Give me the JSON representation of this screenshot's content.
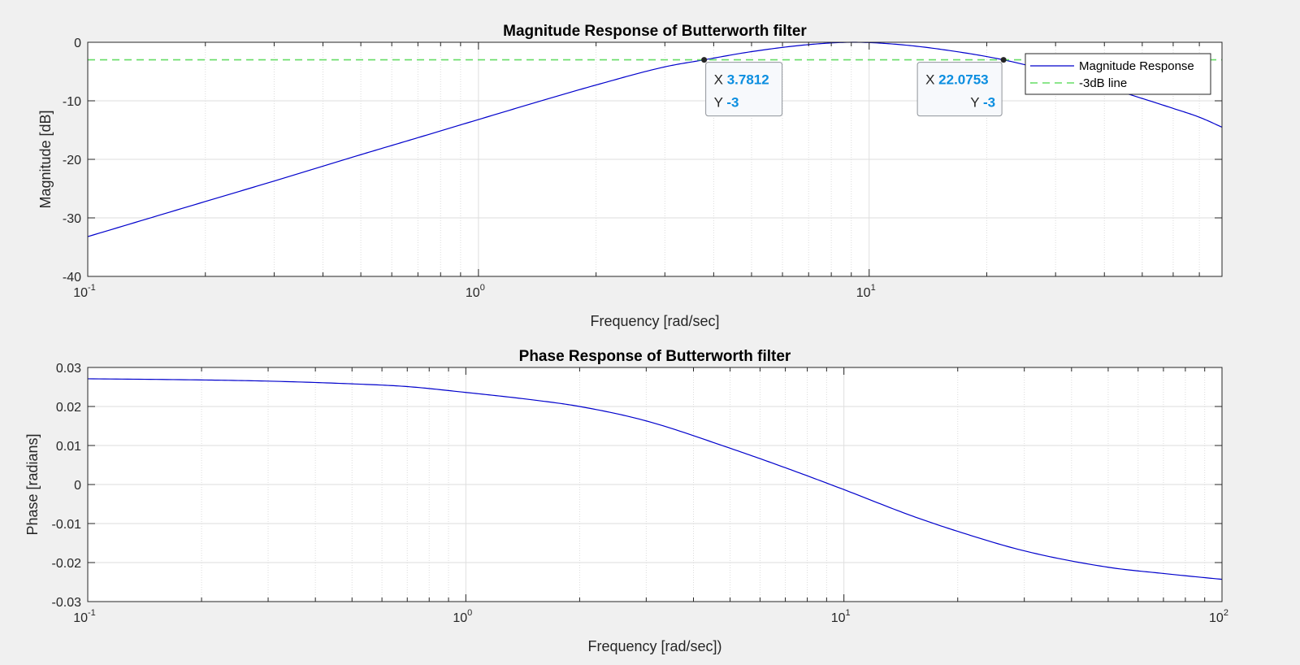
{
  "chart_data": [
    {
      "type": "line",
      "title": "Magnitude Response of Butterworth filter",
      "xlabel": "Frequency [rad/sec]",
      "ylabel": "Magnitude [dB]",
      "xscale": "log",
      "xlim": [
        0.1,
        80
      ],
      "ylim": [
        -40,
        0
      ],
      "grid": true,
      "minor_grid_x": true,
      "x_ticks": [
        {
          "base": "10",
          "exp": "-1",
          "value": 0.1
        },
        {
          "base": "10",
          "exp": "0",
          "value": 1
        },
        {
          "base": "10",
          "exp": "1",
          "value": 10
        }
      ],
      "y_ticks": [
        0,
        -10,
        -20,
        -30,
        -40
      ],
      "series": [
        {
          "name": "Magnitude Response",
          "color": "#0000cc",
          "style": "solid",
          "x": [
            0.1,
            0.2,
            0.3,
            0.5,
            0.7,
            1,
            1.5,
            2,
            3,
            3.7812,
            5,
            7,
            9.14,
            12,
            16,
            22.0753,
            30,
            40,
            50,
            60,
            70,
            80
          ],
          "y": [
            -33.2,
            -27.2,
            -23.7,
            -19.2,
            -16.3,
            -13.2,
            -9.7,
            -7.3,
            -4.2,
            -3.0,
            -1.6,
            -0.4,
            0,
            -0.4,
            -1.4,
            -3.0,
            -5.2,
            -7.6,
            -9.6,
            -11.3,
            -12.8,
            -14.5
          ]
        },
        {
          "name": "-3dB line",
          "color": "#66dd66",
          "style": "dashed",
          "x": [
            0.1,
            80
          ],
          "y": [
            -3,
            -3
          ]
        }
      ],
      "legend": {
        "placement": "top-right",
        "entries": [
          "Magnitude Response",
          "-3dB line"
        ]
      },
      "datatips": [
        {
          "x": 3.7812,
          "y": -3,
          "x_text": "3.7812",
          "y_text": "-3"
        },
        {
          "x": 22.0753,
          "y": -3,
          "x_text": "22.0753",
          "y_text": "-3"
        }
      ]
    },
    {
      "type": "line",
      "title": "Phase Response of Butterworth filter",
      "xlabel": "Frequency [rad/sec])",
      "ylabel": "Phase [radians]",
      "xscale": "log",
      "xlim": [
        0.1,
        100
      ],
      "ylim": [
        -0.03,
        0.03
      ],
      "grid": true,
      "minor_grid_x": true,
      "x_ticks": [
        {
          "base": "10",
          "exp": "-1",
          "value": 0.1
        },
        {
          "base": "10",
          "exp": "0",
          "value": 1
        },
        {
          "base": "10",
          "exp": "1",
          "value": 10
        },
        {
          "base": "10",
          "exp": "2",
          "value": 100
        }
      ],
      "y_ticks": [
        "0.03",
        "0.02",
        "0.01",
        "0",
        "-0.01",
        "-0.02",
        "-0.03"
      ],
      "series": [
        {
          "color": "#0000cc",
          "style": "solid",
          "x": [
            0.1,
            0.2,
            0.3,
            0.5,
            0.7,
            1,
            1.5,
            2,
            3,
            5,
            7,
            10,
            15,
            20,
            30,
            50,
            70,
            100
          ],
          "y": [
            0.0271,
            0.0268,
            0.0265,
            0.0258,
            0.0251,
            0.0236,
            0.0217,
            0.02,
            0.0163,
            0.0093,
            0.0043,
            -0.0013,
            -0.0079,
            -0.012,
            -0.017,
            -0.0212,
            -0.0228,
            -0.0243
          ]
        }
      ]
    }
  ]
}
